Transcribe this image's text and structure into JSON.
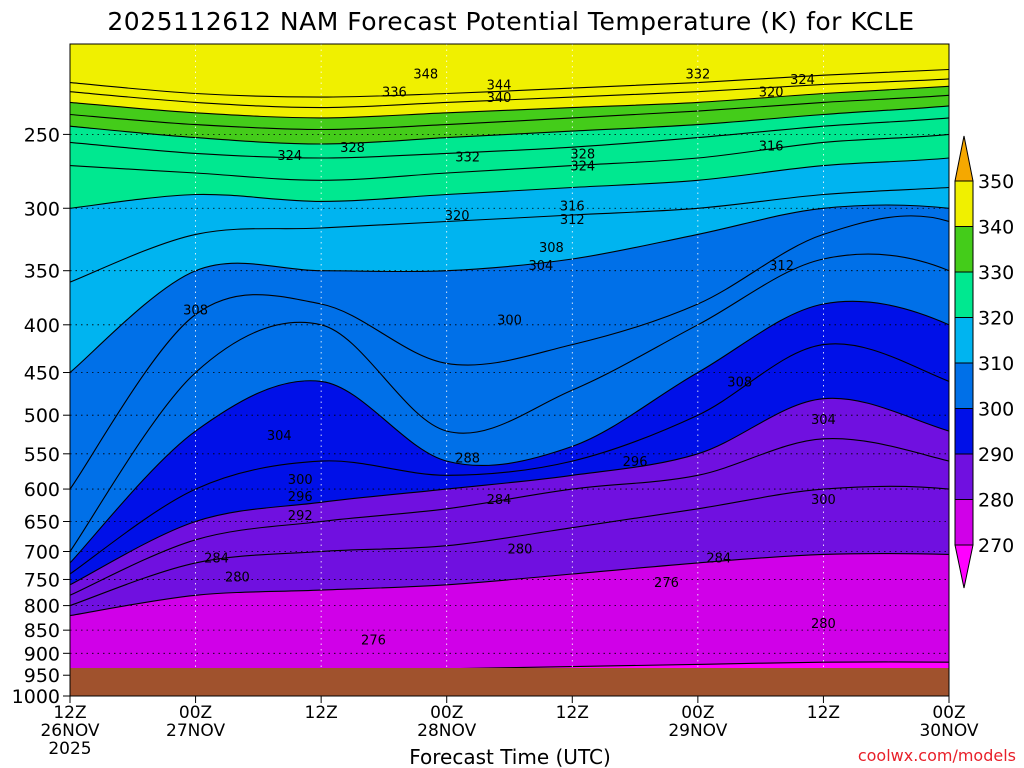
{
  "chart_data": {
    "type": "contour",
    "title": "2025112612 NAM Forecast Potential Temperature (K) for KCLE",
    "xlabel": "Forecast Time (UTC)",
    "ylabel": "",
    "credit": "coolwx.com/models",
    "x_hours": [
      0,
      12,
      24,
      36,
      48,
      60,
      72,
      84,
      96
    ],
    "x_ticks": [
      {
        "hour": 0,
        "line1": "12Z",
        "line2": "26NOV",
        "line3": "2025"
      },
      {
        "hour": 12,
        "line1": "00Z",
        "line2": "27NOV",
        "line3": ""
      },
      {
        "hour": 24,
        "line1": "12Z",
        "line2": "",
        "line3": ""
      },
      {
        "hour": 36,
        "line1": "00Z",
        "line2": "28NOV",
        "line3": ""
      },
      {
        "hour": 48,
        "line1": "12Z",
        "line2": "",
        "line3": ""
      },
      {
        "hour": 60,
        "line1": "00Z",
        "line2": "29NOV",
        "line3": ""
      },
      {
        "hour": 72,
        "line1": "12Z",
        "line2": "",
        "line3": ""
      },
      {
        "hour": 84,
        "line1": "00Z",
        "line2": "30NOV",
        "line3": ""
      }
    ],
    "x_range_hours": [
      0,
      84
    ],
    "y_ticks_hpa": [
      "250",
      "300",
      "350",
      "400",
      "450",
      "500",
      "550",
      "600",
      "650",
      "700",
      "750",
      "800",
      "850",
      "900",
      "950",
      "1000"
    ],
    "y_range_hpa": [
      200,
      1000
    ],
    "y_scale": "log",
    "colorbar": {
      "levels": [
        "350",
        "340",
        "330",
        "320",
        "310",
        "300",
        "290",
        "280",
        "270"
      ],
      "colors": [
        "#f5a800",
        "#f0f000",
        "#44cc1a",
        "#00e890",
        "#00b4f0",
        "#0070e8",
        "#0010e8",
        "#7010e0",
        "#d000e8",
        "#ff00ff"
      ]
    },
    "contour_interval_k": 2,
    "isentropes": [
      {
        "theta": 276,
        "p": [
          950,
          945,
          940,
          935,
          930,
          925,
          920,
          920,
          925,
          930,
          935,
          935,
          935
        ]
      },
      {
        "theta": 280,
        "p": [
          820,
          780,
          770,
          760,
          740,
          720,
          705,
          705,
          715,
          740,
          775,
          820,
          860
        ]
      },
      {
        "theta": 284,
        "p": [
          800,
          720,
          700,
          690,
          660,
          630,
          600,
          600,
          640,
          700,
          740,
          770,
          800
        ]
      },
      {
        "theta": 288,
        "p": [
          780,
          680,
          650,
          630,
          600,
          580,
          530,
          560,
          620,
          660,
          700,
          720,
          740
        ]
      },
      {
        "theta": 292,
        "p": [
          760,
          650,
          620,
          600,
          580,
          550,
          480,
          520,
          580,
          620,
          650,
          680,
          700
        ]
      },
      {
        "theta": 296,
        "p": [
          740,
          600,
          560,
          580,
          560,
          500,
          420,
          460,
          540,
          590,
          620,
          640,
          660
        ]
      },
      {
        "theta": 300,
        "p": [
          720,
          520,
          460,
          560,
          540,
          450,
          380,
          400,
          500,
          560,
          590,
          610,
          630
        ]
      },
      {
        "theta": 304,
        "p": [
          700,
          450,
          400,
          520,
          470,
          400,
          340,
          350,
          440,
          480,
          470,
          480,
          500
        ]
      },
      {
        "theta": 308,
        "p": [
          600,
          390,
          380,
          440,
          420,
          380,
          320,
          310,
          390,
          420,
          380,
          400,
          420
        ]
      },
      {
        "theta": 312,
        "p": [
          450,
          350,
          350,
          350,
          340,
          320,
          300,
          300,
          320,
          340,
          340,
          350,
          360
        ]
      },
      {
        "theta": 316,
        "p": [
          360,
          320,
          315,
          310,
          305,
          300,
          290,
          285,
          280,
          275,
          270,
          270,
          275
        ]
      },
      {
        "theta": 320,
        "p": [
          300,
          290,
          295,
          290,
          285,
          280,
          270,
          265,
          255,
          250,
          245,
          245,
          250
        ]
      },
      {
        "theta": 324,
        "p": [
          270,
          275,
          280,
          275,
          270,
          265,
          255,
          250,
          240,
          235,
          230,
          230,
          232
        ]
      },
      {
        "theta": 328,
        "p": [
          255,
          262,
          265,
          262,
          258,
          252,
          245,
          240,
          232,
          228,
          225,
          224,
          225
        ]
      },
      {
        "theta": 332,
        "p": [
          245,
          252,
          256,
          252,
          248,
          244,
          238,
          233,
          226,
          222,
          220,
          219,
          220
        ]
      },
      {
        "theta": 336,
        "p": [
          238,
          244,
          247,
          244,
          240,
          236,
          231,
          227,
          221,
          218,
          216,
          215,
          216
        ]
      },
      {
        "theta": 340,
        "p": [
          231,
          237,
          240,
          237,
          234,
          231,
          226,
          222,
          217,
          214,
          212,
          211,
          212
        ]
      },
      {
        "theta": 344,
        "p": [
          225,
          231,
          234,
          231,
          228,
          225,
          221,
          218,
          213,
          211,
          209,
          208,
          209
        ]
      },
      {
        "theta": 348,
        "p": [
          220,
          226,
          228,
          226,
          223,
          220,
          216,
          213,
          209,
          207,
          206,
          205,
          206
        ]
      }
    ],
    "labels": [
      {
        "text": "348",
        "hour": 34,
        "p": 215
      },
      {
        "text": "336",
        "hour": 31,
        "p": 225
      },
      {
        "text": "344",
        "hour": 41,
        "p": 221
      },
      {
        "text": "340",
        "hour": 41,
        "p": 228
      },
      {
        "text": "332",
        "hour": 60,
        "p": 215
      },
      {
        "text": "324",
        "hour": 70,
        "p": 218
      },
      {
        "text": "320",
        "hour": 67,
        "p": 225
      },
      {
        "text": "324",
        "hour": 21,
        "p": 263
      },
      {
        "text": "328",
        "hour": 27,
        "p": 258
      },
      {
        "text": "332",
        "hour": 38,
        "p": 264
      },
      {
        "text": "328",
        "hour": 49,
        "p": 262
      },
      {
        "text": "324",
        "hour": 49,
        "p": 270
      },
      {
        "text": "316",
        "hour": 67,
        "p": 257
      },
      {
        "text": "320",
        "hour": 37,
        "p": 305
      },
      {
        "text": "316",
        "hour": 48,
        "p": 298
      },
      {
        "text": "312",
        "hour": 48,
        "p": 308
      },
      {
        "text": "308",
        "hour": 46,
        "p": 330
      },
      {
        "text": "304",
        "hour": 45,
        "p": 345
      },
      {
        "text": "312",
        "hour": 68,
        "p": 345
      },
      {
        "text": "308",
        "hour": 12,
        "p": 385
      },
      {
        "text": "300",
        "hour": 42,
        "p": 395
      },
      {
        "text": "308",
        "hour": 64,
        "p": 460
      },
      {
        "text": "304",
        "hour": 20,
        "p": 525
      },
      {
        "text": "304",
        "hour": 72,
        "p": 505
      },
      {
        "text": "296",
        "hour": 54,
        "p": 560
      },
      {
        "text": "288",
        "hour": 38,
        "p": 555
      },
      {
        "text": "300",
        "hour": 22,
        "p": 585
      },
      {
        "text": "296",
        "hour": 22,
        "p": 610
      },
      {
        "text": "292",
        "hour": 22,
        "p": 640
      },
      {
        "text": "284",
        "hour": 41,
        "p": 615
      },
      {
        "text": "300",
        "hour": 72,
        "p": 615
      },
      {
        "text": "284",
        "hour": 14,
        "p": 710
      },
      {
        "text": "280",
        "hour": 16,
        "p": 745
      },
      {
        "text": "280",
        "hour": 43,
        "p": 695
      },
      {
        "text": "284",
        "hour": 62,
        "p": 710
      },
      {
        "text": "276",
        "hour": 57,
        "p": 755
      },
      {
        "text": "280",
        "hour": 72,
        "p": 835
      },
      {
        "text": "276",
        "hour": 29,
        "p": 870
      }
    ]
  }
}
